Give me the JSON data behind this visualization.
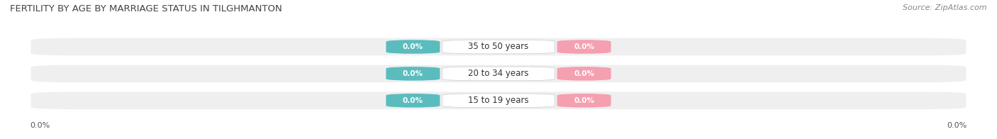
{
  "title": "FERTILITY BY AGE BY MARRIAGE STATUS IN TILGHMANTON",
  "source": "Source: ZipAtlas.com",
  "age_groups": [
    "15 to 19 years",
    "20 to 34 years",
    "35 to 50 years"
  ],
  "married_values": [
    0.0,
    0.0,
    0.0
  ],
  "unmarried_values": [
    0.0,
    0.0,
    0.0
  ],
  "married_color": "#5bbcbe",
  "unmarried_color": "#f4a0b0",
  "row_bg_color": "#efefef",
  "row_bg_light": "#f8f8f8",
  "axis_label_left": "0.0%",
  "axis_label_right": "0.0%",
  "title_fontsize": 9.5,
  "source_fontsize": 8,
  "value_fontsize": 7.5,
  "age_fontsize": 8.5,
  "legend_fontsize": 8.5,
  "axis_fontsize": 8,
  "figsize": [
    14.06,
    1.96
  ],
  "dpi": 100
}
